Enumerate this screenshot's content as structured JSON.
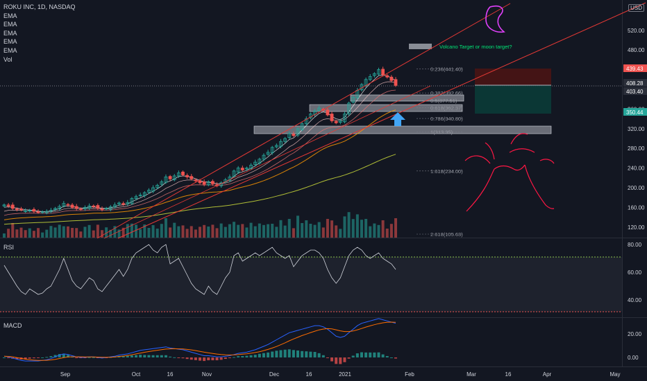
{
  "header": {
    "symbol_line": "ROKU INC, 1D, NASDAQ",
    "indicators": [
      "EMA",
      "EMA",
      "EMA",
      "EMA",
      "EMA",
      "Vol"
    ],
    "currency": "USD"
  },
  "panes": {
    "rsi_label": "RSI",
    "macd_label": "MACD"
  },
  "annotation_text": "Volcano Target or moon target?",
  "colors": {
    "bg": "#131722",
    "up": "#26a69a",
    "down": "#ef5350",
    "text": "#d1d4dc",
    "annotation": "#00e676",
    "trend": "#e53935",
    "arrow": "#2962ff",
    "drawing": "#ff1744",
    "moon": "#e040fb"
  },
  "chart_data": [
    {
      "type": "candlestick",
      "title": "ROKU INC, 1D, NASDAQ",
      "price_axis_ticks": [
        520,
        480,
        440,
        400,
        360,
        320,
        280,
        240,
        200,
        160,
        120
      ],
      "time_axis_labels": [
        "Sep",
        "Oct",
        "16",
        "Nov",
        "Dec",
        "16",
        "2021",
        "Feb",
        "Mar",
        "16",
        "Apr",
        "May"
      ],
      "price_labels": [
        {
          "value": "439.43",
          "color": "#ef5350"
        },
        {
          "value": "408.28",
          "color": "#d1d4dc"
        },
        {
          "value": "403.40",
          "color": "#d1d4dc"
        },
        {
          "value": "350.44",
          "color": "#26a69a"
        }
      ],
      "fib_levels": [
        {
          "ratio": "0.236",
          "price": 441.4,
          "label": "0.236(441.40)"
        },
        {
          "ratio": "0.382",
          "price": 392.66,
          "label": "0.382(392.66)"
        },
        {
          "ratio": "0.5",
          "price": 377.51,
          "label": "0.5(377.51)"
        },
        {
          "ratio": "0.618",
          "price": 362.37,
          "label": "0.618(362.37)"
        },
        {
          "ratio": "0.786",
          "price": 340.8,
          "label": "0.786(340.80)"
        },
        {
          "ratio": "1",
          "price": 313.35,
          "label": "1(313.35)"
        },
        {
          "ratio": "1.618",
          "price": 234.0,
          "label": "1.618(234.00)"
        },
        {
          "ratio": "2.618",
          "price": 105.63,
          "label": "2.618(105.63)"
        }
      ],
      "close_prices": [
        165,
        163,
        158,
        156,
        155,
        153,
        154,
        152,
        150,
        151,
        152,
        154,
        158,
        162,
        168,
        165,
        160,
        158,
        156,
        160,
        163,
        162,
        158,
        156,
        158,
        161,
        165,
        169,
        166,
        170,
        178,
        182,
        185,
        190,
        195,
        200,
        205,
        212,
        222,
        218,
        224,
        230,
        226,
        222,
        218,
        214,
        210,
        207,
        212,
        208,
        204,
        210,
        216,
        222,
        234,
        240,
        236,
        240,
        246,
        252,
        258,
        266,
        272,
        282,
        286,
        294,
        300,
        310,
        306,
        320,
        330,
        340,
        350,
        356,
        362,
        358,
        348,
        336,
        332,
        336,
        350,
        372,
        384,
        398,
        410,
        420,
        426,
        432,
        440,
        430,
        425,
        418,
        408
      ]
    },
    {
      "type": "line",
      "title": "RSI",
      "y_ticks": [
        80,
        60,
        40
      ],
      "overbought": 70,
      "oversold": 30,
      "values": [
        65,
        60,
        55,
        50,
        46,
        44,
        48,
        46,
        44,
        45,
        48,
        50,
        56,
        62,
        70,
        62,
        54,
        50,
        48,
        52,
        56,
        54,
        48,
        46,
        50,
        54,
        58,
        62,
        57,
        62,
        70,
        74,
        76,
        78,
        80,
        76,
        74,
        78,
        80,
        66,
        68,
        70,
        64,
        58,
        52,
        48,
        46,
        44,
        50,
        46,
        44,
        50,
        56,
        60,
        72,
        74,
        68,
        70,
        72,
        74,
        72,
        74,
        76,
        78,
        74,
        72,
        70,
        72,
        64,
        68,
        72,
        74,
        76,
        76,
        74,
        70,
        62,
        56,
        52,
        56,
        64,
        72,
        76,
        78,
        76,
        72,
        70,
        72,
        74,
        70,
        68,
        66,
        62
      ]
    },
    {
      "type": "line",
      "title": "MACD",
      "y_ticks": [
        20,
        0
      ],
      "macd": [
        1,
        0.5,
        -0.5,
        -1.5,
        -2.5,
        -3,
        -3,
        -3,
        -3,
        -2.5,
        -2,
        -1,
        0.5,
        2,
        3,
        2.5,
        1.5,
        0.5,
        0,
        0,
        0.5,
        0.5,
        0,
        -0.5,
        0,
        0.5,
        1,
        2,
        2.5,
        3,
        4,
        5,
        6,
        6.5,
        7,
        7.5,
        8,
        8.5,
        9,
        8,
        7.5,
        7,
        6.5,
        5.5,
        4.5,
        3.5,
        2.5,
        1.5,
        1.5,
        1,
        0.5,
        0.5,
        1,
        1.5,
        2.5,
        3.5,
        4,
        4.5,
        5.5,
        6.5,
        8,
        9.5,
        11,
        13,
        15,
        17,
        19,
        21,
        22,
        23,
        24,
        25,
        26,
        27,
        27,
        26,
        24,
        21,
        18,
        17,
        18,
        21,
        24,
        27,
        29,
        30,
        31,
        32,
        33,
        32,
        31,
        30,
        29
      ],
      "signal": [
        1,
        0.9,
        0.5,
        -0.1,
        -0.8,
        -1.5,
        -2,
        -2.3,
        -2.5,
        -2.5,
        -2.4,
        -2.1,
        -1.6,
        -0.9,
        -0.1,
        0.4,
        0.6,
        0.6,
        0.5,
        0.4,
        0.4,
        0.4,
        0.3,
        0.1,
        0.1,
        0.2,
        0.4,
        0.8,
        1.2,
        1.7,
        2.3,
        3,
        3.7,
        4.4,
        5,
        5.6,
        6.1,
        6.6,
        7.1,
        7.3,
        7.4,
        7.3,
        7.2,
        6.8,
        6.4,
        5.8,
        5.2,
        4.5,
        3.9,
        3.4,
        2.9,
        2.5,
        2.2,
        2.1,
        2.2,
        2.4,
        2.8,
        3.1,
        3.6,
        4.2,
        4.9,
        5.8,
        6.8,
        8,
        9.3,
        10.8,
        12.4,
        14.1,
        15.7,
        17.1,
        18.6,
        19.8,
        21.1,
        22.3,
        23.4,
        24.1,
        24.5,
        24.3,
        23.5,
        22.6,
        22,
        22,
        22.5,
        23.5,
        24.6,
        25.8,
        26.8,
        27.8,
        28.7,
        29.4,
        29.8,
        30,
        29.9
      ]
    }
  ]
}
